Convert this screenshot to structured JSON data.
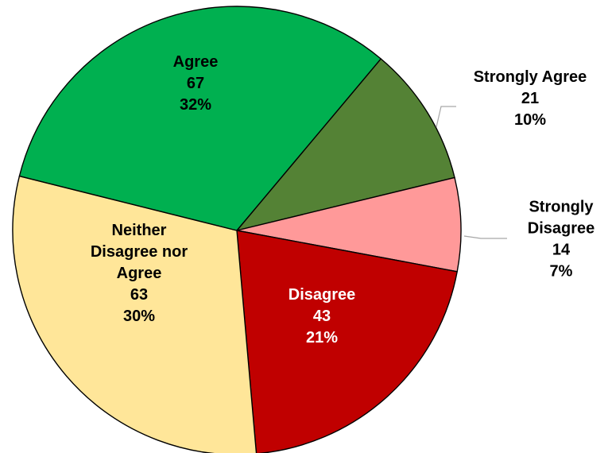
{
  "chart_data": {
    "type": "pie",
    "slices": [
      {
        "category": "Strongly Agree",
        "label_lines": [
          "Strongly Agree"
        ],
        "count": 21,
        "percent": "10%",
        "color": "#548235",
        "label_color": "#000000"
      },
      {
        "category": "Strongly Disagree",
        "label_lines": [
          "Strongly",
          "Disagree"
        ],
        "count": 14,
        "percent": "7%",
        "color": "#ff9999",
        "label_color": "#000000"
      },
      {
        "category": "Disagree",
        "label_lines": [
          "Disagree"
        ],
        "count": 43,
        "percent": "21%",
        "color": "#c00000",
        "label_color": "#ffffff"
      },
      {
        "category": "Neither Disagree nor Agree",
        "label_lines": [
          "Neither",
          "Disagree nor",
          "Agree"
        ],
        "count": 63,
        "percent": "30%",
        "color": "#ffe699",
        "label_color": "#000000"
      },
      {
        "category": "Agree",
        "label_lines": [
          "Agree"
        ],
        "count": 67,
        "percent": "32%",
        "color": "#00b050",
        "label_color": "#000000"
      }
    ],
    "start_angle_deg": 40,
    "direction": "clockwise",
    "legend": "none"
  }
}
